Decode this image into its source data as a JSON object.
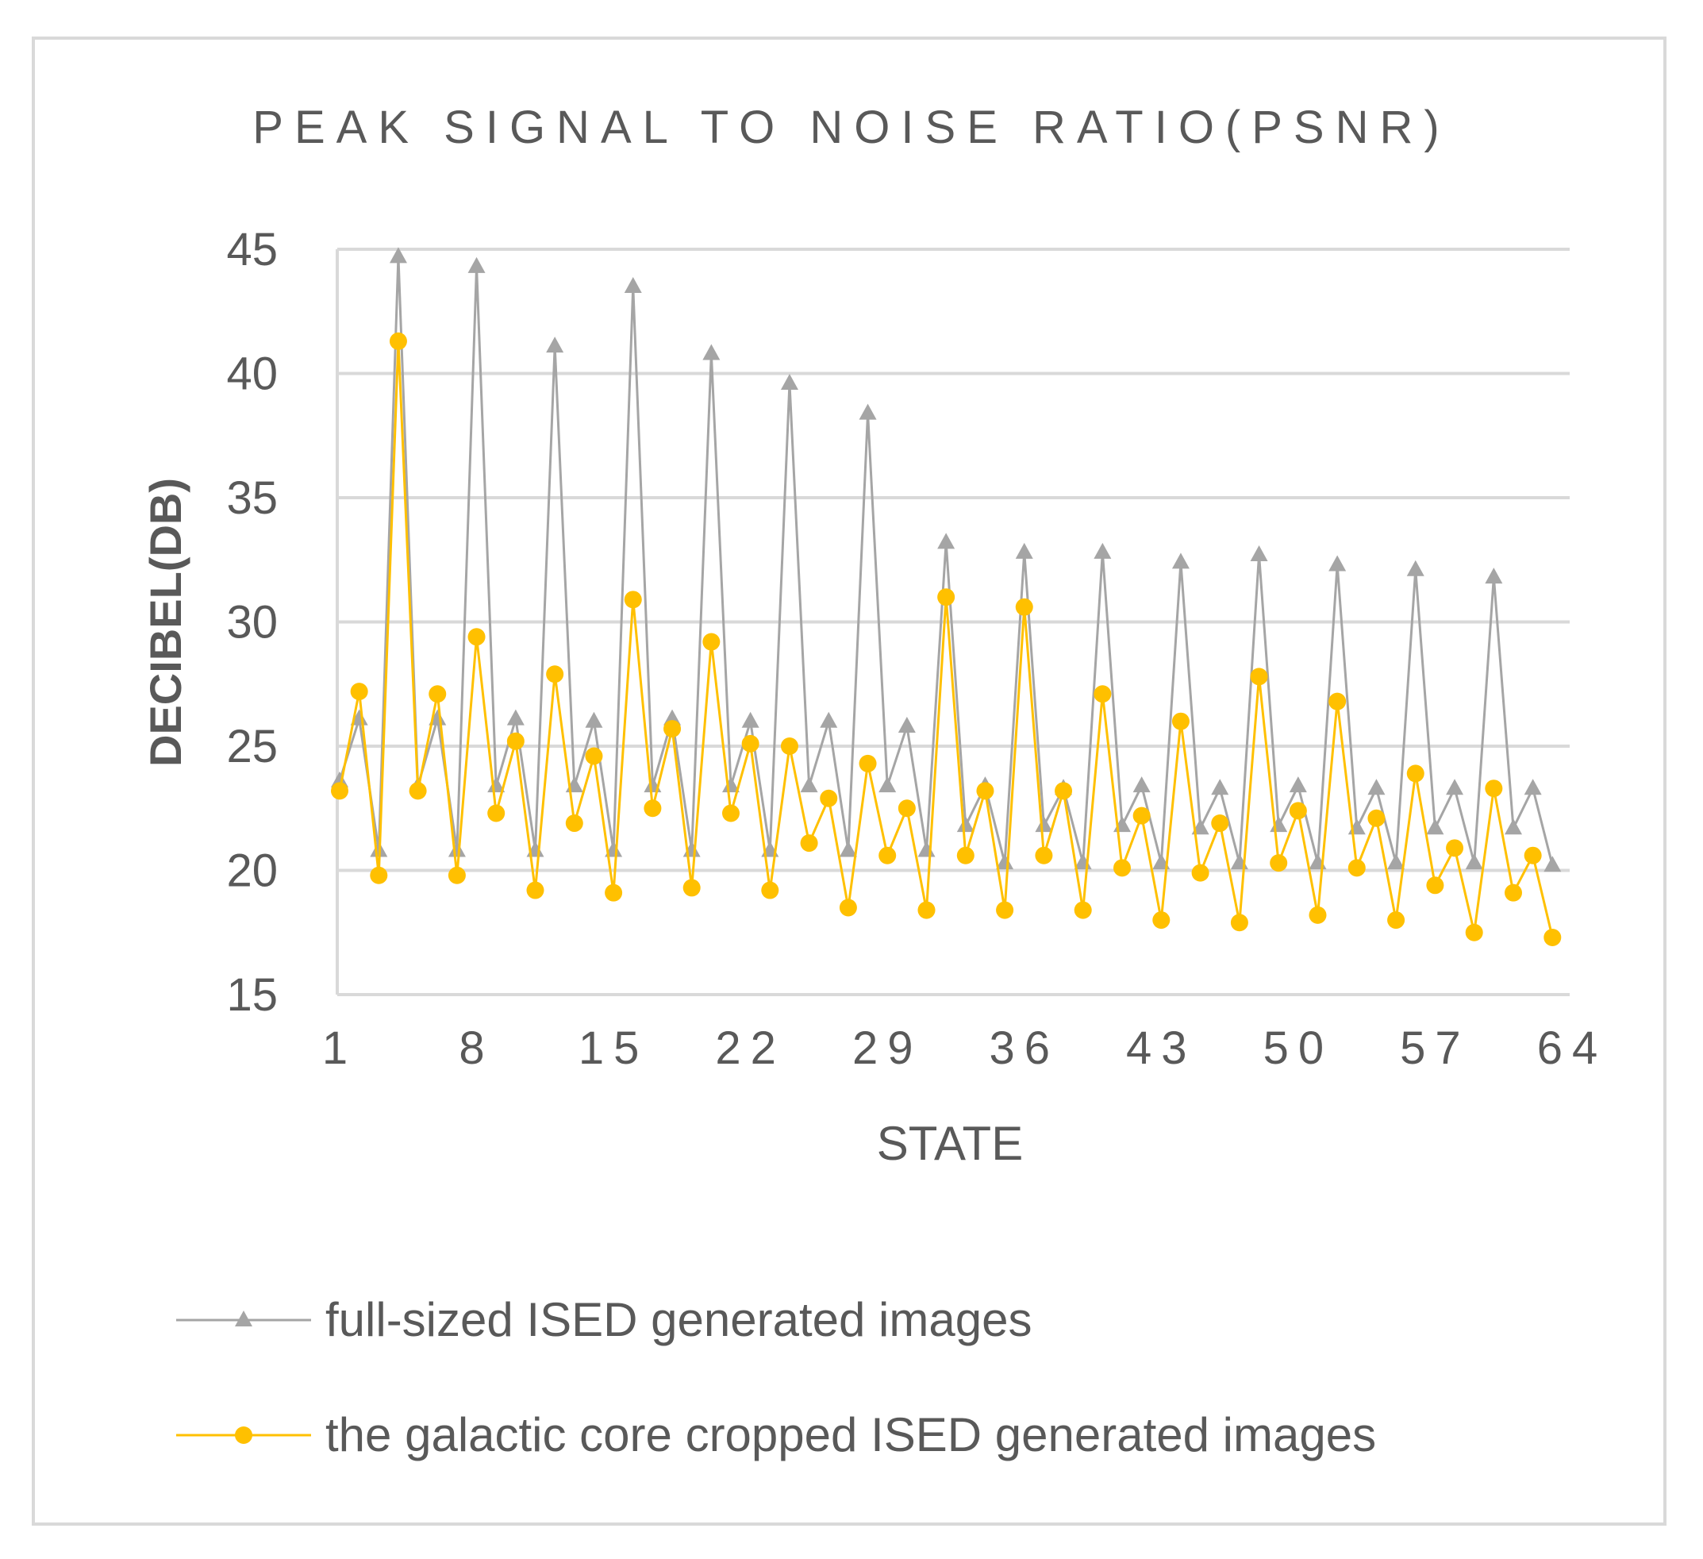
{
  "chart_data": {
    "type": "line",
    "title": "PEAK SIGNAL TO NOISE RATIO(PSNR)",
    "xlabel": "STATE",
    "ylabel": "DECIBEL(DB)",
    "ylim": [
      15,
      45
    ],
    "yticks": [
      15,
      20,
      25,
      30,
      35,
      40,
      45
    ],
    "xticks": [
      1,
      8,
      15,
      22,
      29,
      36,
      43,
      50,
      57,
      64
    ],
    "grid": true,
    "legend_position": "bottom",
    "colors": {
      "series_full": "#a5a5a5",
      "series_cropped": "#ffc000",
      "grid": "#d9d9d9",
      "text": "#595959"
    },
    "series": [
      {
        "name": "full-sized ISED generated images",
        "marker": "triangle",
        "x": [
          1,
          2,
          3,
          4,
          5,
          6,
          7,
          8,
          9,
          10,
          11,
          12,
          13,
          14,
          15,
          16,
          17,
          18,
          19,
          20,
          21,
          22,
          23,
          24,
          25,
          26,
          27,
          28,
          29,
          30,
          31,
          32,
          33,
          34,
          35,
          36,
          37,
          38,
          39,
          40,
          41,
          42,
          43,
          44,
          45,
          46,
          47,
          48,
          49,
          50,
          51,
          52,
          53,
          54,
          55,
          56,
          57,
          58,
          59,
          60,
          61,
          62,
          63
        ],
        "values": [
          23.6,
          26.1,
          20.8,
          44.7,
          23.4,
          26.1,
          20.8,
          44.3,
          23.4,
          26.1,
          20.8,
          41.1,
          23.4,
          26.0,
          20.8,
          43.5,
          23.4,
          26.1,
          20.8,
          40.8,
          23.4,
          26.0,
          20.8,
          39.6,
          23.4,
          26.0,
          20.8,
          38.4,
          23.4,
          25.8,
          20.8,
          33.2,
          21.8,
          23.4,
          20.3,
          32.8,
          21.8,
          23.3,
          20.3,
          32.8,
          21.8,
          23.4,
          20.3,
          32.4,
          21.7,
          23.3,
          20.3,
          32.7,
          21.8,
          23.4,
          20.3,
          32.3,
          21.7,
          23.3,
          20.3,
          32.1,
          21.7,
          23.3,
          20.3,
          31.8,
          21.7,
          23.3,
          20.2
        ]
      },
      {
        "name": "the galactic core cropped ISED generated images",
        "marker": "circle",
        "x": [
          1,
          2,
          3,
          4,
          5,
          6,
          7,
          8,
          9,
          10,
          11,
          12,
          13,
          14,
          15,
          16,
          17,
          18,
          19,
          20,
          21,
          22,
          23,
          24,
          25,
          26,
          27,
          28,
          29,
          30,
          31,
          32,
          33,
          34,
          35,
          36,
          37,
          38,
          39,
          40,
          41,
          42,
          43,
          44,
          45,
          46,
          47,
          48,
          49,
          50,
          51,
          52,
          53,
          54,
          55,
          56,
          57,
          58,
          59,
          60,
          61,
          62,
          63
        ],
        "values": [
          23.2,
          27.2,
          19.8,
          41.3,
          23.2,
          27.1,
          19.8,
          29.4,
          22.3,
          25.2,
          19.2,
          27.9,
          21.9,
          24.6,
          19.1,
          30.9,
          22.5,
          25.7,
          19.3,
          29.2,
          22.3,
          25.1,
          19.2,
          25.0,
          21.1,
          22.9,
          18.5,
          24.3,
          20.6,
          22.5,
          18.4,
          31.0,
          20.6,
          23.2,
          18.4,
          30.6,
          20.6,
          23.2,
          18.4,
          27.1,
          20.1,
          22.2,
          18.0,
          26.0,
          19.9,
          21.9,
          17.9,
          27.8,
          20.3,
          22.4,
          18.2,
          26.8,
          20.1,
          22.1,
          18.0,
          23.9,
          19.4,
          20.9,
          17.5,
          23.3,
          19.1,
          20.6,
          17.3
        ]
      }
    ]
  }
}
